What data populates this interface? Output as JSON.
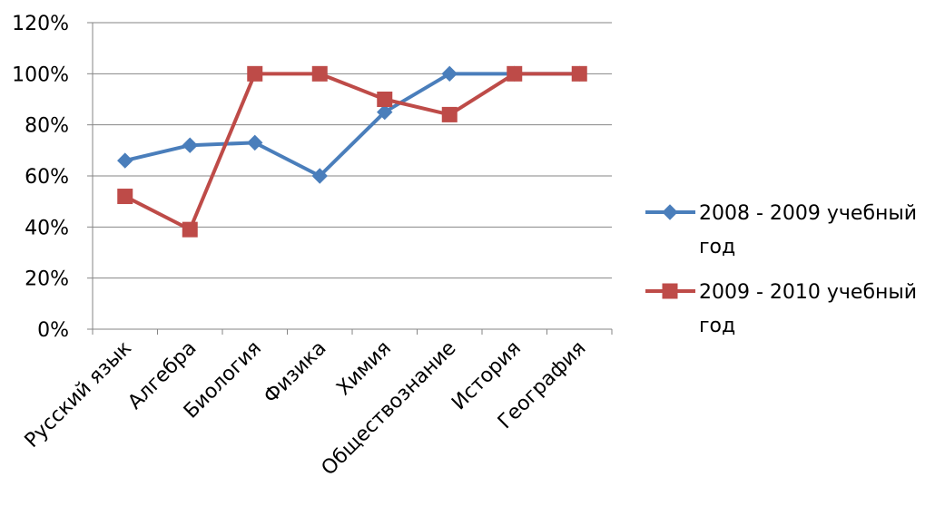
{
  "chart_data": {
    "type": "line",
    "categories": [
      "Русский язык",
      "Алгебра",
      "Биология",
      "Физика",
      "Химия",
      "Обществознание",
      "История",
      "География"
    ],
    "y_ticks": [
      "0%",
      "20%",
      "40%",
      "60%",
      "80%",
      "100%",
      "120%"
    ],
    "ylim": [
      0,
      120
    ],
    "grid": true,
    "legend_position": "right",
    "series": [
      {
        "name_lines": [
          "2008 - 2009 учебный",
          "год"
        ],
        "values": [
          66,
          72,
          73,
          60,
          85,
          100,
          100,
          100
        ],
        "color": "#4a7ebb",
        "marker": "diamond"
      },
      {
        "name_lines": [
          "2009 - 2010 учебный",
          "год"
        ],
        "values": [
          52,
          39,
          100,
          100,
          90,
          84,
          100,
          100
        ],
        "color": "#be4b48",
        "marker": "square"
      }
    ]
  }
}
